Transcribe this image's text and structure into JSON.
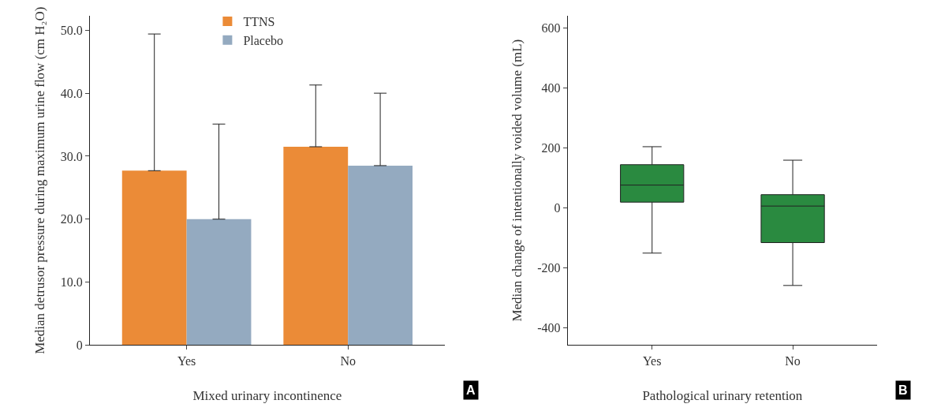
{
  "chart_data": [
    {
      "type": "bar",
      "categories": [
        "Yes",
        "No"
      ],
      "xlabel": "Mixed urinary incontinence",
      "ylabel": "Median detrusor pressure during maximum urine flow (cm H₂O)",
      "ylim": [
        0,
        52.3
      ],
      "yticks": [
        0,
        {
          "value": 10,
          "label": "10.0"
        },
        {
          "value": 20,
          "label": "20.0"
        },
        {
          "value": 30,
          "label": "30.0"
        },
        {
          "value": 40,
          "label": "40.0"
        },
        {
          "value": 50,
          "label": "50.0"
        }
      ],
      "legend": "top",
      "series": [
        {
          "name": "TTNS",
          "color": "#eb8b37",
          "values": [
            27.7,
            31.5
          ],
          "errors": [
            [
              27.7,
              49.4
            ],
            [
              31.5,
              41.3
            ]
          ]
        },
        {
          "name": "Placebo",
          "color": "#94aac0",
          "values": [
            20.0,
            28.5
          ],
          "errors": [
            [
              20.0,
              35.1
            ],
            [
              28.5,
              40.0
            ]
          ]
        }
      ],
      "annotations": [
        "A"
      ]
    },
    {
      "type": "box",
      "categories": [
        "Yes",
        "No"
      ],
      "xlabel": "Pathological urinary retention",
      "ylabel": "Median change of intentionally voided volume (mL)",
      "ylim": [
        -457,
        642
      ],
      "yticks": [
        -400,
        -200,
        0,
        200,
        400,
        600
      ],
      "color": "#2a8a40",
      "boxes": [
        {
          "low": -150,
          "q1": 20,
          "median": 77,
          "q3": 145,
          "high": 205
        },
        {
          "low": -258,
          "q1": -115,
          "median": 7,
          "q3": 45,
          "high": 160
        }
      ],
      "annotations": [
        "B"
      ]
    }
  ]
}
